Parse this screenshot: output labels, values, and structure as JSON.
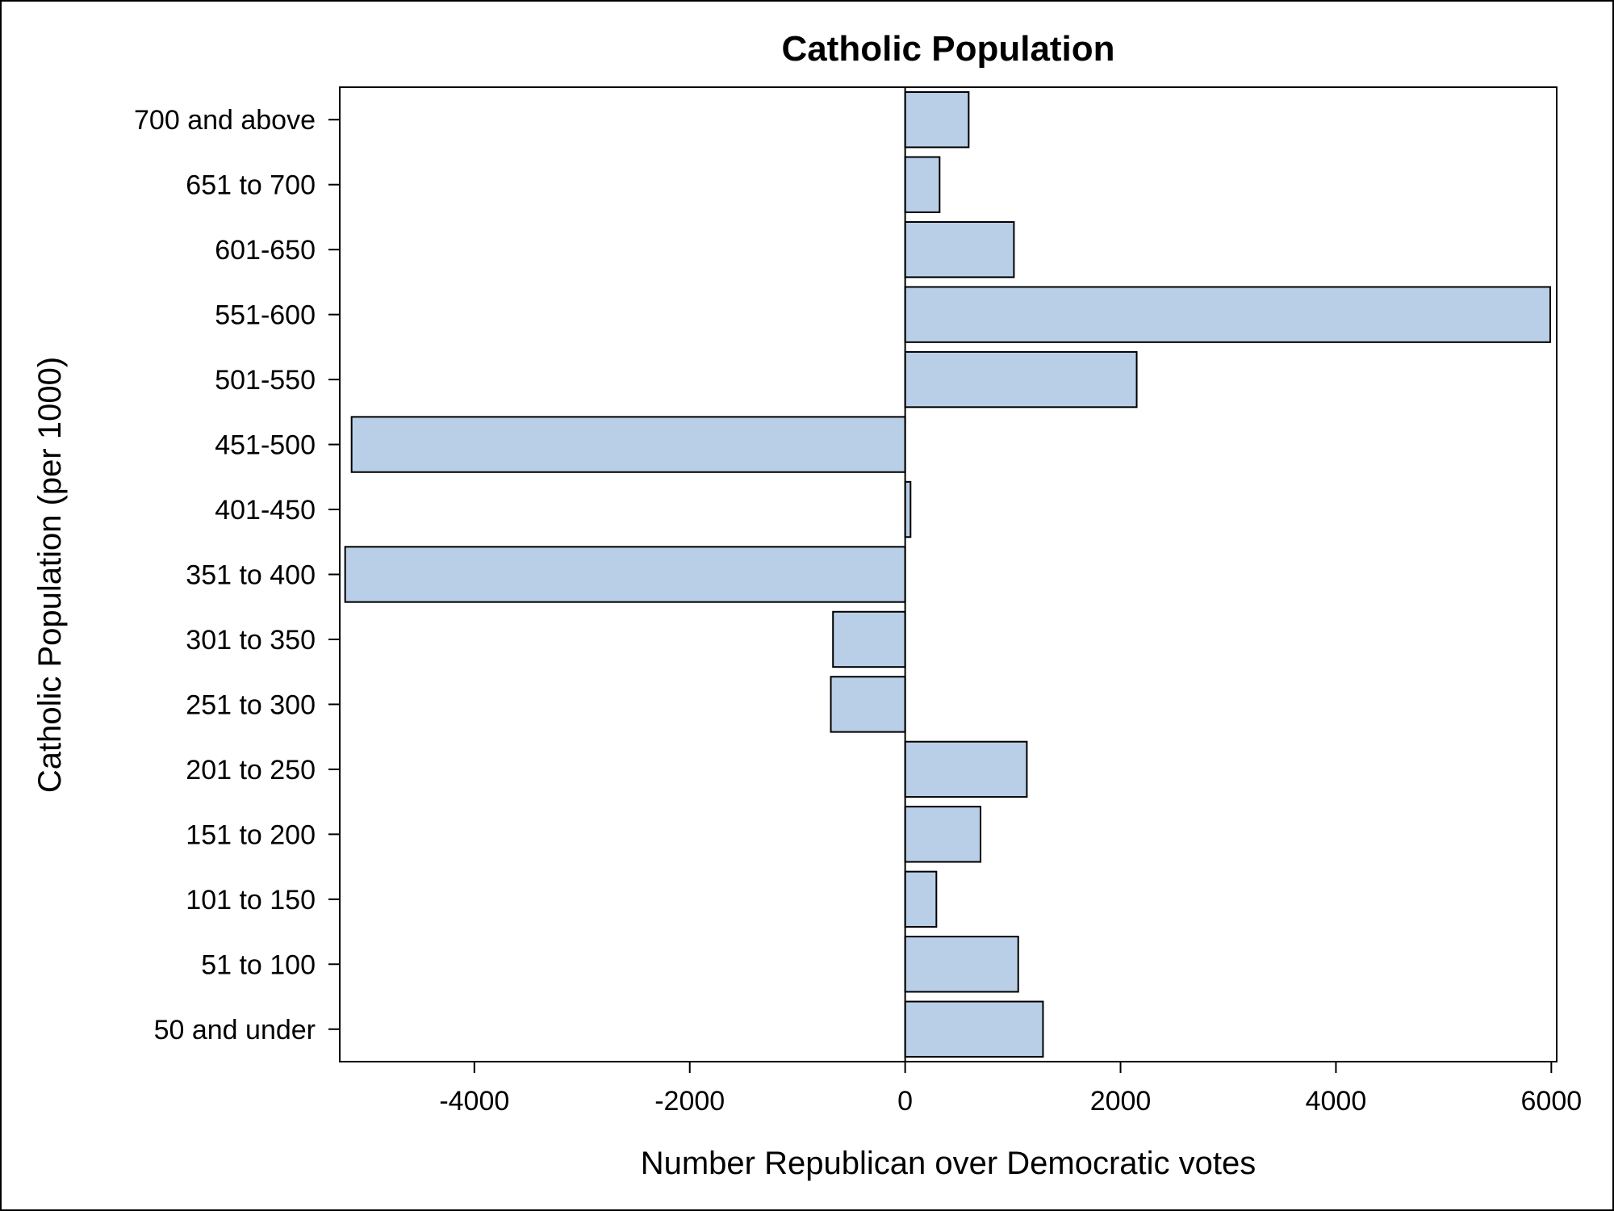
{
  "chart_data": {
    "type": "bar",
    "orientation": "horizontal",
    "title": "Catholic Population",
    "xlabel": "Number Republican over Democratic votes",
    "ylabel": "Catholic Population (per 1000)",
    "categories": [
      "700 and above",
      "651 to 700",
      "601-650",
      "551-600",
      "501-550",
      "451-500",
      "401-450",
      "351 to 400",
      "301 to 350",
      "251 to 300",
      "201 to 250",
      "151 to 200",
      "101 to 150",
      "51 to 100",
      "50 and under"
    ],
    "values": [
      590,
      320,
      1010,
      5990,
      2150,
      -5140,
      50,
      -5200,
      -670,
      -690,
      1130,
      700,
      290,
      1050,
      1280
    ],
    "xlim": [
      -5250,
      6050
    ],
    "xticks": [
      -4000,
      -2000,
      0,
      2000,
      4000,
      6000
    ],
    "xtick_labels": [
      "-4000",
      "-2000",
      "0",
      "2000",
      "4000",
      "6000"
    ],
    "grid": false,
    "legend": "none",
    "bar_color": "#b9cfe8",
    "bar_edge_color": "#000000"
  }
}
